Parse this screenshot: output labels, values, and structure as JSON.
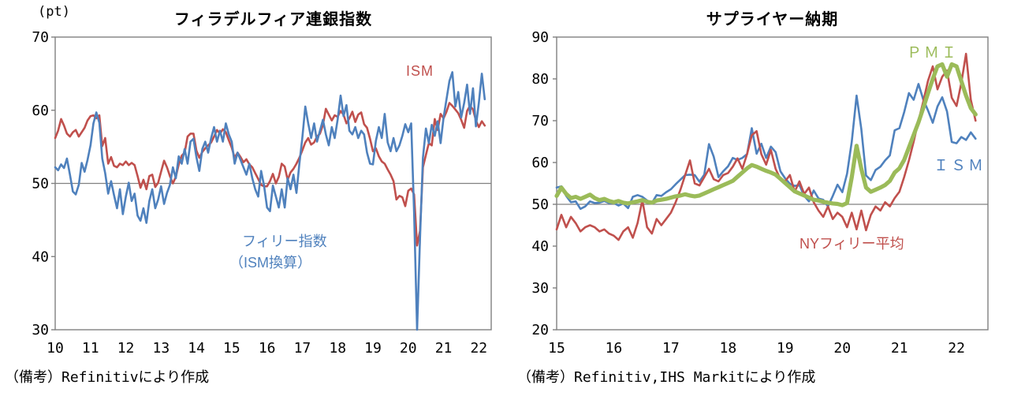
{
  "background": "#ffffff",
  "axis_color": "#808080",
  "text_color": "#000000",
  "chart_data": [
    {
      "type": "line",
      "title": "フィラデルフィア連銀指数",
      "unit_label": "(pt)",
      "note": "（備考）Refinitivにより作成",
      "xlim": [
        2010.0,
        2022.35
      ],
      "ylim": [
        30,
        70
      ],
      "gridline": 50,
      "grid": "only-50-line",
      "legend_position": "inline-labels",
      "x_ticks": [
        {
          "year": 2010,
          "label": "10"
        },
        {
          "year": 2011,
          "label": "11"
        },
        {
          "year": 2012,
          "label": "12"
        },
        {
          "year": 2013,
          "label": "13"
        },
        {
          "year": 2014,
          "label": "14"
        },
        {
          "year": 2015,
          "label": "15"
        },
        {
          "year": 2016,
          "label": "16"
        },
        {
          "year": 2017,
          "label": "17"
        },
        {
          "year": 2018,
          "label": "18"
        },
        {
          "year": 2019,
          "label": "19"
        },
        {
          "year": 2020,
          "label": "20"
        },
        {
          "year": 2021,
          "label": "21"
        },
        {
          "year": 2022,
          "label": "22"
        }
      ],
      "y_ticks": [
        70,
        60,
        50,
        40,
        30
      ],
      "series": [
        {
          "key": "ism",
          "label": "ISM",
          "color": "#C0504D",
          "width": 2.6,
          "start_year": 2010,
          "frequency": "monthly",
          "values": [
            56.2,
            57.2,
            58.8,
            57.9,
            56.8,
            56.4,
            57.0,
            57.3,
            56.4,
            57.0,
            57.6,
            58.6,
            59.2,
            59.3,
            58.9,
            59.3,
            55.1,
            56.2,
            52.7,
            53.6,
            52.4,
            52.2,
            52.7,
            52.5,
            53.0,
            52.5,
            52.8,
            52.5,
            51.0,
            49.4,
            50.5,
            49.2,
            51.0,
            51.2,
            49.5,
            50.1,
            51.6,
            53.1,
            52.2,
            51.0,
            50.0,
            50.9,
            52.6,
            53.8,
            54.2,
            56.4,
            56.8,
            56.8,
            54.5,
            53.5,
            54.3,
            54.8,
            55.2,
            55.6,
            56.4,
            57.3,
            56.8,
            57.4,
            57.0,
            55.9,
            54.9,
            53.5,
            54.2,
            53.6,
            52.9,
            53.3,
            52.6,
            52.2,
            51.4,
            50.6,
            49.8,
            49.6,
            49.6,
            50.3,
            51.3,
            50.0,
            50.9,
            52.7,
            52.3,
            50.5,
            51.5,
            52.0,
            52.7,
            53.5,
            54.5,
            55.6,
            56.2,
            55.3,
            55.6,
            56.4,
            56.8,
            58.0,
            60.2,
            59.4,
            58.6,
            59.3,
            59.1,
            59.9,
            59.4,
            58.2,
            58.9,
            59.8,
            58.4,
            59.4,
            59.7,
            58.1,
            57.6,
            56.1,
            54.4,
            54.8,
            53.7,
            53.0,
            52.7,
            51.9,
            51.2,
            50.3,
            47.8,
            48.3,
            48.1,
            46.9,
            49.0,
            49.3,
            48.5,
            41.5,
            43.5,
            52.2,
            53.9,
            55.5,
            55.2,
            58.8,
            57.3,
            59.5,
            58.9,
            59.8,
            61.0,
            60.6,
            60.1,
            59.6,
            58.7,
            57.6,
            59.9,
            60.6,
            60.1,
            58.6,
            57.7,
            58.5,
            57.9
          ]
        },
        {
          "key": "philly",
          "label": "フィリー指数",
          "label_sub": "（ISM換算）",
          "color": "#4F81BD",
          "width": 2.6,
          "start_year": 2010,
          "frequency": "monthly",
          "values": [
            52.2,
            51.8,
            52.6,
            52.1,
            53.4,
            51.2,
            48.9,
            48.5,
            49.8,
            52.8,
            51.6,
            53.2,
            55.2,
            58.2,
            59.7,
            58.3,
            53.4,
            51.4,
            48.6,
            50.3,
            48.4,
            46.6,
            49.2,
            45.8,
            48.2,
            50.1,
            47.6,
            48.6,
            45.6,
            44.9,
            46.6,
            44.6,
            47.6,
            49.2,
            46.6,
            47.8,
            49.6,
            47.2,
            48.7,
            49.8,
            52.2,
            50.7,
            53.7,
            52.7,
            54.7,
            52.7,
            55.7,
            56.1,
            53.6,
            51.7,
            54.7,
            55.7,
            54.2,
            56.2,
            57.7,
            55.7,
            57.2,
            55.7,
            58.2,
            56.7,
            55.7,
            52.7,
            54.2,
            53.2,
            52.2,
            51.2,
            52.7,
            50.7,
            49.2,
            48.2,
            51.7,
            49.7,
            46.7,
            46.2,
            49.7,
            48.2,
            46.7,
            49.2,
            46.7,
            50.7,
            49.2,
            51.2,
            48.7,
            52.7,
            56.2,
            60.5,
            58.2,
            56.2,
            58.2,
            55.7,
            57.2,
            58.7,
            56.7,
            55.2,
            57.7,
            56.2,
            58.7,
            62.0,
            59.2,
            60.7,
            57.2,
            56.7,
            57.7,
            56.2,
            57.2,
            56.7,
            54.2,
            52.7,
            52.6,
            55.8,
            57.7,
            56.2,
            59.5,
            55.6,
            54.4,
            56.2,
            54.4,
            55.2,
            56.5,
            58.1,
            57.0,
            58.2,
            46.0,
            30.0,
            42.5,
            53.5,
            57.5,
            55.5,
            58.0,
            56.5,
            58.5,
            55.5,
            59.0,
            61.5,
            64.0,
            65.2,
            60.5,
            62.5,
            59.0,
            61.0,
            63.5,
            59.5,
            63.0,
            57.8,
            61.0,
            65.0,
            61.5
          ]
        }
      ]
    },
    {
      "type": "line",
      "title": "サプライヤー納期",
      "note": "（備考）Refinitiv,IHS Markitにより作成",
      "xlim": [
        2015.0,
        2022.55
      ],
      "ylim": [
        20,
        90
      ],
      "gridline": 50,
      "grid": "only-50-line",
      "legend_position": "inline-labels",
      "x_ticks": [
        {
          "year": 2015,
          "label": "15"
        },
        {
          "year": 2016,
          "label": "16"
        },
        {
          "year": 2017,
          "label": "17"
        },
        {
          "year": 2018,
          "label": "18"
        },
        {
          "year": 2019,
          "label": "19"
        },
        {
          "year": 2020,
          "label": "20"
        },
        {
          "year": 2021,
          "label": "21"
        },
        {
          "year": 2022,
          "label": "22"
        }
      ],
      "y_ticks": [
        90,
        80,
        70,
        60,
        50,
        40,
        30,
        20
      ],
      "series": [
        {
          "key": "ism-deliveries",
          "label": "ＩＳＭ",
          "color": "#4F81BD",
          "width": 2.6,
          "start_year": 2015,
          "frequency": "monthly",
          "values": [
            54.0,
            54.3,
            52.0,
            50.5,
            50.7,
            48.9,
            49.5,
            50.7,
            50.3,
            50.4,
            50.8,
            50.3,
            50.3,
            49.7,
            50.2,
            49.1,
            51.8,
            52.2,
            51.8,
            50.9,
            50.3,
            52.2,
            52.0,
            52.9,
            53.6,
            54.8,
            55.9,
            57.0,
            57.1,
            57.0,
            55.4,
            57.1,
            64.4,
            61.4,
            56.5,
            57.9,
            59.1,
            61.1,
            60.6,
            61.1,
            62.0,
            68.2,
            62.1,
            64.5,
            61.1,
            63.8,
            62.5,
            57.9,
            56.2,
            54.9,
            54.4,
            54.6,
            52.0,
            50.7,
            53.3,
            51.4,
            51.1,
            49.5,
            52.0,
            54.7,
            52.9,
            57.3,
            65.0,
            76.0,
            68.0,
            56.9,
            55.8,
            58.2,
            59.0,
            60.5,
            61.7,
            67.7,
            68.2,
            72.0,
            76.6,
            75.0,
            78.8,
            75.1,
            72.5,
            69.5,
            73.4,
            75.6,
            72.2,
            64.9,
            64.6,
            66.1,
            65.4,
            67.2,
            65.7
          ]
        },
        {
          "key": "ny-philly-average",
          "label": "NYフィリー平均",
          "color": "#C0504D",
          "width": 2.6,
          "start_year": 2015,
          "frequency": "monthly",
          "values": [
            44.0,
            47.5,
            44.5,
            47.0,
            45.5,
            43.5,
            44.5,
            45.0,
            44.5,
            43.5,
            44.0,
            43.0,
            42.5,
            41.5,
            43.5,
            44.5,
            42.0,
            45.5,
            51.0,
            44.5,
            43.0,
            46.5,
            45.0,
            46.5,
            48.0,
            50.5,
            53.5,
            57.0,
            60.5,
            55.0,
            54.5,
            56.5,
            58.5,
            56.0,
            55.5,
            57.0,
            57.5,
            59.0,
            61.0,
            58.5,
            62.0,
            66.5,
            67.5,
            62.0,
            59.5,
            63.0,
            58.5,
            56.0,
            55.5,
            57.0,
            53.0,
            55.5,
            52.5,
            54.0,
            50.5,
            48.5,
            47.0,
            49.5,
            46.5,
            48.0,
            47.0,
            44.5,
            48.0,
            44.0,
            48.5,
            43.8,
            47.5,
            49.5,
            48.5,
            50.5,
            49.5,
            51.5,
            53.0,
            56.5,
            60.5,
            65.0,
            70.0,
            74.5,
            79.5,
            83.0,
            77.5,
            80.5,
            82.0,
            75.5,
            73.5,
            79.0,
            86.0,
            75.0,
            70.0
          ]
        },
        {
          "key": "pmi",
          "label": "ＰＭＩ",
          "color": "#9BBB59",
          "width": 5.2,
          "start_year": 2015,
          "frequency": "monthly",
          "values": [
            52.0,
            54.0,
            52.5,
            51.5,
            51.8,
            51.3,
            51.8,
            52.3,
            51.5,
            51.0,
            51.3,
            50.8,
            50.5,
            50.8,
            50.4,
            50.2,
            50.5,
            50.7,
            51.0,
            50.6,
            50.4,
            50.9,
            51.1,
            51.3,
            51.6,
            51.9,
            52.1,
            52.4,
            52.1,
            51.9,
            52.1,
            52.6,
            53.1,
            53.6,
            54.1,
            54.6,
            55.1,
            55.6,
            56.6,
            57.6,
            58.6,
            59.4,
            59.0,
            58.5,
            58.0,
            57.6,
            57.1,
            56.1,
            55.1,
            54.1,
            53.1,
            52.6,
            52.1,
            51.6,
            51.1,
            50.9,
            50.6,
            50.4,
            50.2,
            50.1,
            49.8,
            50.3,
            56.5,
            64.0,
            58.5,
            54.0,
            53.0,
            53.5,
            54.0,
            54.6,
            55.6,
            57.6,
            58.6,
            60.6,
            63.6,
            66.6,
            69.6,
            73.0,
            76.5,
            80.0,
            83.0,
            83.5,
            80.5,
            83.5,
            83.0,
            79.5,
            76.0,
            73.0,
            71.5
          ]
        }
      ]
    }
  ]
}
